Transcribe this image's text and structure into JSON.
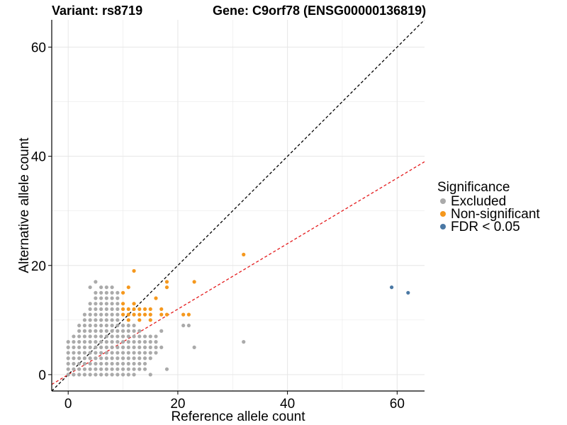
{
  "chart_data": {
    "type": "scatter",
    "title_variant": "Variant: rs8719",
    "title_gene": "Gene: C9orf78 (ENSG00000136819)",
    "xlabel": "Reference allele count",
    "ylabel": "Alternative allele count",
    "xlim": [
      -3,
      65
    ],
    "ylim": [
      -3,
      65
    ],
    "x_ticks": [
      0,
      20,
      40,
      60
    ],
    "y_ticks": [
      0,
      20,
      40,
      60
    ],
    "grid": true,
    "reference_lines": [
      {
        "name": "identity",
        "intercept": 0,
        "slope": 1,
        "color": "#000000",
        "dash": true
      },
      {
        "name": "fit",
        "intercept": 0,
        "slope": 0.6,
        "color": "#e41a1c",
        "dash": true
      }
    ],
    "legend": {
      "title": "Significance",
      "position": "right",
      "entries": [
        {
          "label": "Excluded",
          "color": "#aaaaaa"
        },
        {
          "label": "Non-significant",
          "color": "#f5981d"
        },
        {
          "label": "FDR < 0.05",
          "color": "#4a78a4"
        }
      ]
    },
    "series": [
      {
        "name": "Excluded",
        "color": "#aaaaaa",
        "points": [
          [
            0,
            0
          ],
          [
            0,
            1
          ],
          [
            0,
            2
          ],
          [
            0,
            3
          ],
          [
            0,
            4
          ],
          [
            0,
            5
          ],
          [
            0,
            6
          ],
          [
            1,
            0
          ],
          [
            1,
            1
          ],
          [
            1,
            2
          ],
          [
            1,
            3
          ],
          [
            1,
            4
          ],
          [
            1,
            5
          ],
          [
            1,
            6
          ],
          [
            1,
            7
          ],
          [
            2,
            0
          ],
          [
            2,
            1
          ],
          [
            2,
            2
          ],
          [
            2,
            3
          ],
          [
            2,
            4
          ],
          [
            2,
            5
          ],
          [
            2,
            6
          ],
          [
            2,
            7
          ],
          [
            2,
            8
          ],
          [
            2,
            9
          ],
          [
            3,
            0
          ],
          [
            3,
            1
          ],
          [
            3,
            2
          ],
          [
            3,
            3
          ],
          [
            3,
            4
          ],
          [
            3,
            5
          ],
          [
            3,
            6
          ],
          [
            3,
            7
          ],
          [
            3,
            8
          ],
          [
            3,
            9
          ],
          [
            3,
            10
          ],
          [
            3,
            11
          ],
          [
            4,
            0
          ],
          [
            4,
            1
          ],
          [
            4,
            2
          ],
          [
            4,
            3
          ],
          [
            4,
            4
          ],
          [
            4,
            5
          ],
          [
            4,
            6
          ],
          [
            4,
            7
          ],
          [
            4,
            8
          ],
          [
            4,
            9
          ],
          [
            4,
            10
          ],
          [
            4,
            11
          ],
          [
            4,
            12
          ],
          [
            4,
            13
          ],
          [
            4,
            16
          ],
          [
            5,
            0
          ],
          [
            5,
            1
          ],
          [
            5,
            2
          ],
          [
            5,
            3
          ],
          [
            5,
            4
          ],
          [
            5,
            5
          ],
          [
            5,
            6
          ],
          [
            5,
            7
          ],
          [
            5,
            8
          ],
          [
            5,
            9
          ],
          [
            5,
            10
          ],
          [
            5,
            11
          ],
          [
            5,
            12
          ],
          [
            5,
            13
          ],
          [
            5,
            14
          ],
          [
            5,
            15
          ],
          [
            5,
            17
          ],
          [
            6,
            0
          ],
          [
            6,
            1
          ],
          [
            6,
            2
          ],
          [
            6,
            3
          ],
          [
            6,
            4
          ],
          [
            6,
            5
          ],
          [
            6,
            6
          ],
          [
            6,
            7
          ],
          [
            6,
            8
          ],
          [
            6,
            9
          ],
          [
            6,
            10
          ],
          [
            6,
            11
          ],
          [
            6,
            12
          ],
          [
            6,
            13
          ],
          [
            6,
            14
          ],
          [
            6,
            15
          ],
          [
            6,
            16
          ],
          [
            7,
            0
          ],
          [
            7,
            1
          ],
          [
            7,
            2
          ],
          [
            7,
            3
          ],
          [
            7,
            4
          ],
          [
            7,
            5
          ],
          [
            7,
            6
          ],
          [
            7,
            7
          ],
          [
            7,
            8
          ],
          [
            7,
            9
          ],
          [
            7,
            10
          ],
          [
            7,
            11
          ],
          [
            7,
            12
          ],
          [
            7,
            13
          ],
          [
            7,
            14
          ],
          [
            7,
            15
          ],
          [
            7,
            16
          ],
          [
            8,
            0
          ],
          [
            8,
            1
          ],
          [
            8,
            2
          ],
          [
            8,
            3
          ],
          [
            8,
            4
          ],
          [
            8,
            5
          ],
          [
            8,
            6
          ],
          [
            8,
            7
          ],
          [
            8,
            8
          ],
          [
            8,
            9
          ],
          [
            8,
            10
          ],
          [
            8,
            11
          ],
          [
            8,
            12
          ],
          [
            8,
            13
          ],
          [
            8,
            14
          ],
          [
            8,
            15
          ],
          [
            8,
            16
          ],
          [
            9,
            0
          ],
          [
            9,
            1
          ],
          [
            9,
            2
          ],
          [
            9,
            3
          ],
          [
            9,
            4
          ],
          [
            9,
            5
          ],
          [
            9,
            6
          ],
          [
            9,
            7
          ],
          [
            9,
            8
          ],
          [
            9,
            9
          ],
          [
            9,
            10
          ],
          [
            9,
            11
          ],
          [
            9,
            12
          ],
          [
            9,
            13
          ],
          [
            9,
            14
          ],
          [
            9,
            15
          ],
          [
            10,
            0
          ],
          [
            10,
            1
          ],
          [
            10,
            2
          ],
          [
            10,
            3
          ],
          [
            10,
            4
          ],
          [
            10,
            5
          ],
          [
            10,
            6
          ],
          [
            10,
            7
          ],
          [
            10,
            8
          ],
          [
            10,
            9
          ],
          [
            11,
            0
          ],
          [
            11,
            1
          ],
          [
            11,
            2
          ],
          [
            11,
            3
          ],
          [
            11,
            4
          ],
          [
            11,
            5
          ],
          [
            11,
            6
          ],
          [
            11,
            7
          ],
          [
            11,
            8
          ],
          [
            11,
            9
          ],
          [
            12,
            0
          ],
          [
            12,
            1
          ],
          [
            12,
            2
          ],
          [
            12,
            3
          ],
          [
            12,
            4
          ],
          [
            12,
            5
          ],
          [
            12,
            6
          ],
          [
            12,
            7
          ],
          [
            12,
            8
          ],
          [
            12,
            9
          ],
          [
            13,
            1
          ],
          [
            13,
            2
          ],
          [
            13,
            3
          ],
          [
            13,
            4
          ],
          [
            13,
            5
          ],
          [
            13,
            6
          ],
          [
            13,
            7
          ],
          [
            13,
            8
          ],
          [
            14,
            1
          ],
          [
            14,
            2
          ],
          [
            14,
            3
          ],
          [
            14,
            4
          ],
          [
            14,
            5
          ],
          [
            14,
            6
          ],
          [
            14,
            7
          ],
          [
            15,
            0
          ],
          [
            15,
            3
          ],
          [
            15,
            4
          ],
          [
            15,
            5
          ],
          [
            15,
            6
          ],
          [
            15,
            7
          ],
          [
            16,
            4
          ],
          [
            16,
            5
          ],
          [
            16,
            6
          ],
          [
            16,
            7
          ],
          [
            17,
            5
          ],
          [
            17,
            8
          ],
          [
            18,
            1
          ],
          [
            21,
            9
          ],
          [
            22,
            9
          ],
          [
            23,
            5
          ],
          [
            32,
            6
          ]
        ]
      },
      {
        "name": "Non-significant",
        "color": "#f5981d",
        "points": [
          [
            10,
            11
          ],
          [
            10,
            12
          ],
          [
            10,
            13
          ],
          [
            10,
            15
          ],
          [
            11,
            10
          ],
          [
            11,
            11
          ],
          [
            11,
            12
          ],
          [
            11,
            16
          ],
          [
            12,
            11
          ],
          [
            12,
            12
          ],
          [
            12,
            13
          ],
          [
            12,
            19
          ],
          [
            13,
            10
          ],
          [
            13,
            11
          ],
          [
            13,
            12
          ],
          [
            14,
            11
          ],
          [
            14,
            12
          ],
          [
            15,
            10
          ],
          [
            15,
            11
          ],
          [
            15,
            12
          ],
          [
            16,
            14
          ],
          [
            17,
            11
          ],
          [
            17,
            12
          ],
          [
            18,
            11
          ],
          [
            18,
            16
          ],
          [
            18,
            17
          ],
          [
            21,
            11
          ],
          [
            22,
            11
          ],
          [
            23,
            17
          ],
          [
            32,
            22
          ]
        ]
      },
      {
        "name": "FDR < 0.05",
        "color": "#4a78a4",
        "points": [
          [
            59,
            16
          ],
          [
            62,
            15
          ]
        ]
      }
    ]
  }
}
